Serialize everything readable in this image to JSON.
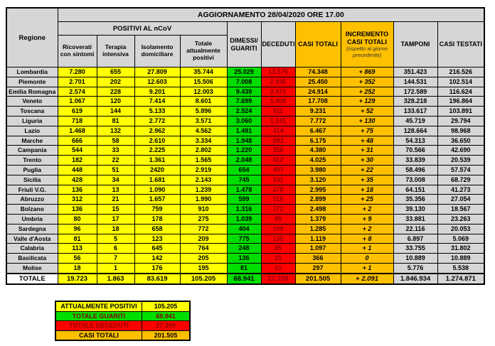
{
  "banner": "AGGIORNAMENTO 28/04/2020 ORE 17.00",
  "columns": {
    "regione": "Regione",
    "positivi_group": "POSITIVI AL nCoV",
    "ricoverati": "Ricoverati con sintomi",
    "terapia": "Terapia intensiva",
    "isolamento": "Isolamento domiciliare",
    "totale_positivi": "Totale attualmente positivi",
    "dimessi_line1": "DIMESSI/",
    "dimessi_line2": "GUARITI",
    "deceduti": "DECEDUTI",
    "casi_totali": "CASI TOTALI",
    "incremento_title": "INCREMENTO CASI TOTALI",
    "incremento_note": "(rispetto al giorno precedente)",
    "tamponi": "TAMPONI",
    "casi_testati": "CASI TESTATI"
  },
  "rows": [
    [
      "Lombardia",
      "7.280",
      "655",
      "27.809",
      "35.744",
      "25.029",
      "13.575",
      "74.348",
      "+ 869",
      "351.423",
      "216.526"
    ],
    [
      "Piemonte",
      "2.701",
      "202",
      "12.603",
      "15.506",
      "7.008",
      "2.936",
      "25.450",
      "+ 352",
      "144.531",
      "102.514"
    ],
    [
      "Emilia Romagna",
      "2.574",
      "228",
      "9.201",
      "12.003",
      "9.439",
      "3.472",
      "24.914",
      "+ 252",
      "172.589",
      "116.624"
    ],
    [
      "Veneto",
      "1.067",
      "120",
      "7.414",
      "8.601",
      "7.699",
      "1.408",
      "17.708",
      "+ 129",
      "328.218",
      "196.864"
    ],
    [
      "Toscana",
      "619",
      "144",
      "5.133",
      "5.896",
      "2.524",
      "811",
      "9.231",
      "+ 52",
      "133.617",
      "103.891"
    ],
    [
      "Liguria",
      "718",
      "81",
      "2.772",
      "3.571",
      "3.060",
      "1.141",
      "7.772",
      "+ 130",
      "45.719",
      "29.794"
    ],
    [
      "Lazio",
      "1.468",
      "132",
      "2.962",
      "4.562",
      "1.491",
      "414",
      "6.467",
      "+ 75",
      "128.664",
      "98.968"
    ],
    [
      "Marche",
      "666",
      "58",
      "2.610",
      "3.334",
      "1.948",
      "893",
      "6.175",
      "+ 48",
      "54.313",
      "36.650"
    ],
    [
      "Campania",
      "544",
      "33",
      "2.225",
      "2.802",
      "1.220",
      "358",
      "4.380",
      "+ 31",
      "70.566",
      "42.690"
    ],
    [
      "Trento",
      "182",
      "22",
      "1.361",
      "1.565",
      "2.048",
      "412",
      "4.025",
      "+ 30",
      "33.839",
      "20.539"
    ],
    [
      "Puglia",
      "448",
      "51",
      "2420",
      "2.919",
      "654",
      "407",
      "3.980",
      "+ 22",
      "58.496",
      "57.574"
    ],
    [
      "Sicilia",
      "428",
      "34",
      "1.681",
      "2.143",
      "745",
      "232",
      "3.120",
      "+ 35",
      "73.008",
      "68.729"
    ],
    [
      "Friuli V.G.",
      "136",
      "13",
      "1.090",
      "1.239",
      "1.478",
      "278",
      "2.995",
      "+ 18",
      "64.151",
      "41.273"
    ],
    [
      "Abruzzo",
      "312",
      "21",
      "1.657",
      "1.990",
      "599",
      "310",
      "2.899",
      "+ 25",
      "35.356",
      "27.054"
    ],
    [
      "Bolzano",
      "136",
      "15",
      "759",
      "910",
      "1.316",
      "272",
      "2.498",
      "+ 2",
      "39.130",
      "18.567"
    ],
    [
      "Umbria",
      "80",
      "17",
      "178",
      "275",
      "1.039",
      "65",
      "1.379",
      "+ 9",
      "33.881",
      "23.263"
    ],
    [
      "Sardegna",
      "96",
      "18",
      "658",
      "772",
      "404",
      "109",
      "1.285",
      "+ 2",
      "22.116",
      "20.053"
    ],
    [
      "Valle d'Aosta",
      "81",
      "5",
      "123",
      "209",
      "775",
      "135",
      "1.119",
      "+ 8",
      "6.897",
      "5.069"
    ],
    [
      "Calabria",
      "113",
      "6",
      "645",
      "764",
      "248",
      "85",
      "1.097",
      "+ 1",
      "33.755",
      "31.802"
    ],
    [
      "Basilicata",
      "56",
      "7",
      "142",
      "205",
      "136",
      "25",
      "366",
      "0",
      "10.889",
      "10.889"
    ],
    [
      "Molise",
      "18",
      "1",
      "176",
      "195",
      "81",
      "21",
      "297",
      "+ 1",
      "5.776",
      "5.538"
    ]
  ],
  "totale": [
    "TOTALE",
    "19.723",
    "1.863",
    "83.619",
    "105.205",
    "68.941",
    "27.359",
    "201.505",
    "+ 2.091",
    "1.846.934",
    "1.274.871"
  ],
  "summary": [
    {
      "label": "ATTUALMENTE POSITIVI",
      "value": "105.205",
      "style": "yellow"
    },
    {
      "label": "TOTALE GUARITI",
      "value": "68.941",
      "style": "green"
    },
    {
      "label": "TOTALE DECEDUTI",
      "value": "27.359",
      "style": "red"
    },
    {
      "label": "CASI TOTALI",
      "value": "201.505",
      "style": "orange"
    }
  ],
  "colors": {
    "yellow": "#FFFF00",
    "green": "#00DD00",
    "red": "#FF0000",
    "orange": "#FFC000",
    "grey": "#D6D6D6",
    "dark_red_text": "#8B0000"
  }
}
